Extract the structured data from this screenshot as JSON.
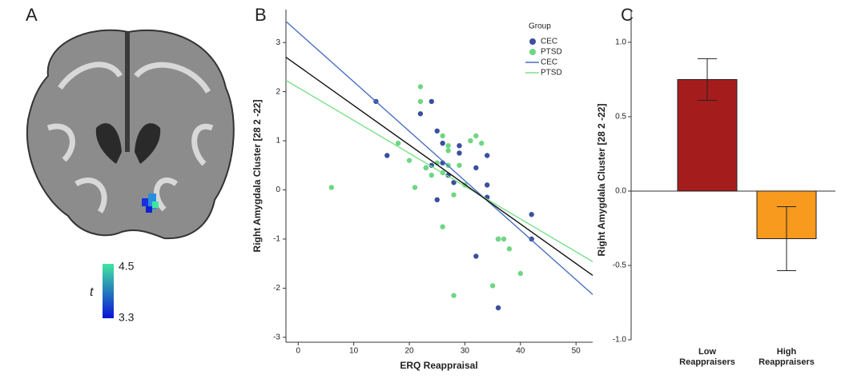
{
  "chart_data": [
    {
      "type": "image",
      "panel": "A",
      "colorbar": {
        "label": "t",
        "min": 3.3,
        "max": 4.5,
        "colors": [
          "#0a14d8",
          "#3fe6a0"
        ]
      }
    },
    {
      "type": "scatter",
      "panel": "B",
      "x_label": "ERQ Reappraisal",
      "y_label": "Right Amygdala Cluster [28 2 -22]",
      "legend_title": "Group",
      "xlim": [
        -2.2,
        53
      ],
      "ylim": [
        -3.1,
        3.67
      ],
      "xticks": [
        0,
        10,
        20,
        30,
        40,
        50
      ],
      "yticks": [
        -3,
        -2,
        -1,
        0,
        1,
        2,
        3
      ],
      "series": [
        {
          "name": "CEC",
          "color": "#3b4f9e",
          "x": [
            14,
            16,
            22,
            24,
            25,
            26,
            24,
            25,
            27,
            28,
            29,
            29,
            32,
            34,
            34,
            34,
            36,
            32,
            36,
            42,
            42,
            26,
            23
          ],
          "values": [
            1.8,
            0.7,
            1.55,
            1.8,
            1.2,
            0.95,
            0.5,
            -0.2,
            0.3,
            0.15,
            0.9,
            0.75,
            0.45,
            0.7,
            0.1,
            -0.15,
            -1.0,
            -1.35,
            -2.4,
            -0.5,
            -1.0,
            0.55,
            0.45
          ]
        },
        {
          "name": "PTSD",
          "color": "#6fd683",
          "x": [
            6,
            18,
            20,
            21,
            22,
            22,
            23,
            24,
            25,
            26,
            26,
            26,
            27,
            27,
            28,
            28,
            29,
            30,
            31,
            32,
            33,
            35,
            36,
            37,
            38,
            40,
            27
          ],
          "values": [
            0.05,
            0.95,
            0.6,
            0.05,
            2.1,
            1.8,
            0.45,
            0.3,
            0.55,
            1.1,
            0.35,
            -0.75,
            0.9,
            0.8,
            -0.1,
            -2.15,
            0.5,
            0.1,
            1.0,
            1.1,
            0.95,
            -1.95,
            -1.0,
            -1.0,
            -1.2,
            -1.7,
            0.5
          ]
        }
      ],
      "lines": [
        {
          "name": "CEC",
          "color": "#4a6fc4",
          "x": [
            -2.2,
            53
          ],
          "values": [
            3.43,
            -2.13
          ]
        },
        {
          "name": "PTSD",
          "color": "#7be08c",
          "x": [
            -2.2,
            53
          ],
          "values": [
            2.23,
            -1.46
          ]
        },
        {
          "color": "#111111",
          "x": [
            -2.2,
            53
          ],
          "values": [
            2.7,
            -1.74
          ]
        }
      ]
    },
    {
      "type": "bar",
      "panel": "C",
      "y_label": "Right Amygdala Cluster [28 2 -22]",
      "categories": [
        "Low Reappraisers",
        "High Reappraisers"
      ],
      "values": [
        0.75,
        -0.32
      ],
      "errors": [
        0.14,
        0.215
      ],
      "colors": [
        "#a51c1c",
        "#f79a1e"
      ],
      "ylim": [
        -1,
        1.22
      ],
      "yticks": [
        {
          "value": -1,
          "label": "-1.0"
        },
        {
          "value": -0.5,
          "label": "-0.5"
        },
        {
          "value": 0,
          "label": "0.0"
        },
        {
          "value": 0.5,
          "label": "0.5"
        },
        {
          "value": 1,
          "label": "1.0"
        }
      ]
    }
  ]
}
